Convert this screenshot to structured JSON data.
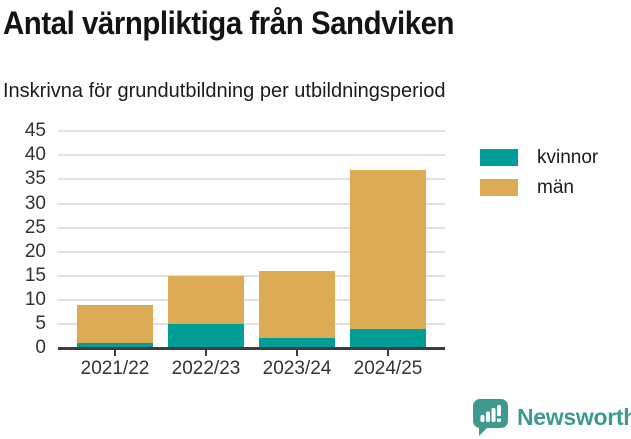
{
  "chart_data": {
    "type": "bar",
    "stacked": true,
    "title": "Antal värnpliktiga från Sandviken",
    "subtitle": "Inskrivna för grundutbildning per utbildningsperiod",
    "categories": [
      "2021/22",
      "2022/23",
      "2023/24",
      "2024/25"
    ],
    "series": [
      {
        "name": "kvinnor",
        "color": "#009E96",
        "values": [
          1,
          5,
          2,
          4
        ]
      },
      {
        "name": "män",
        "color": "#DCAB55",
        "values": [
          8,
          10,
          14,
          33
        ]
      }
    ],
    "totals": [
      9,
      15,
      16,
      37
    ],
    "xlabel": "",
    "ylabel": "",
    "ylim": [
      0,
      45
    ],
    "y_ticks": [
      0,
      5,
      10,
      15,
      20,
      25,
      30,
      35,
      40,
      45
    ],
    "grid": true,
    "legend_position": "top-right"
  },
  "legend": {
    "items": [
      {
        "label": "kvinnor",
        "color": "#009E96"
      },
      {
        "label": "män",
        "color": "#DCAB55"
      }
    ]
  },
  "footer": {
    "brand": "Newsworthy",
    "brand_color": "#3F9A8E",
    "logo_icon": "bar-chart-speech-bubble-icon"
  },
  "colors": {
    "axis": "#3C3C3C",
    "grid": "#E1E1E1",
    "tick_text": "#333333",
    "title_text": "#141414"
  }
}
